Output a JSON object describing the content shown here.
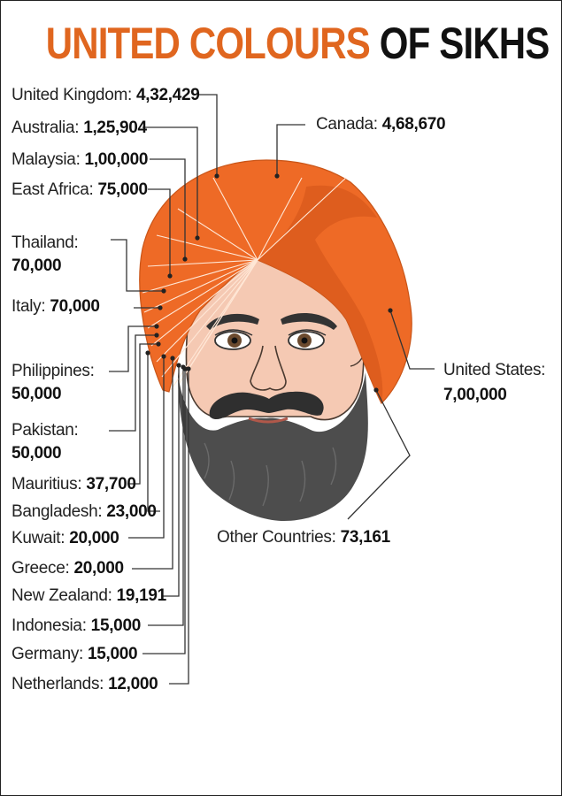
{
  "title": {
    "part1": "UNITED COLOURS",
    "part2": "OF SIKHS"
  },
  "colors": {
    "accent": "#e0661f",
    "turban": "#ee6a26",
    "turban_dark": "#d85a1c",
    "beard": "#4d4d4d",
    "skin": "#f5c9b3"
  },
  "chart_data": {
    "type": "pie",
    "title": "UNITED COLOURS OF SIKHS",
    "categories": [
      "United Kingdom",
      "Australia",
      "Malaysia",
      "East Africa",
      "Thailand",
      "Italy",
      "Philippines",
      "Pakistan",
      "Mauritius",
      "Bangladesh",
      "Kuwait",
      "Greece",
      "New Zealand",
      "Indonesia",
      "Germany",
      "Netherlands",
      "Canada",
      "United States",
      "Other Countries"
    ],
    "values": [
      432429,
      125904,
      100000,
      75000,
      70000,
      70000,
      50000,
      50000,
      37700,
      23000,
      20000,
      20000,
      19191,
      15000,
      15000,
      12000,
      468670,
      700000,
      73161
    ]
  },
  "labels": [
    {
      "country": "United Kingdom:",
      "value": "4,32,429"
    },
    {
      "country": "Australia:",
      "value": "1,25,904"
    },
    {
      "country": "Malaysia:",
      "value": "1,00,000"
    },
    {
      "country": "East Africa:",
      "value": "75,000"
    },
    {
      "country": "Thailand:",
      "value": "70,000"
    },
    {
      "country": "Italy:",
      "value": "70,000"
    },
    {
      "country": "Philippines:",
      "value": "50,000"
    },
    {
      "country": "Pakistan:",
      "value": "50,000"
    },
    {
      "country": "Mauritius:",
      "value": "37,700"
    },
    {
      "country": "Bangladesh:",
      "value": "23,000"
    },
    {
      "country": "Kuwait:",
      "value": "20,000"
    },
    {
      "country": "Greece:",
      "value": "20,000"
    },
    {
      "country": "New Zealand:",
      "value": "19,191"
    },
    {
      "country": "Indonesia:",
      "value": "15,000"
    },
    {
      "country": "Germany:",
      "value": "15,000"
    },
    {
      "country": "Netherlands:",
      "value": "12,000"
    },
    {
      "country": "Canada:",
      "value": "4,68,670"
    },
    {
      "country": "United States:",
      "value": "7,00,000"
    },
    {
      "country": "Other Countries:",
      "value": "73,161"
    }
  ]
}
